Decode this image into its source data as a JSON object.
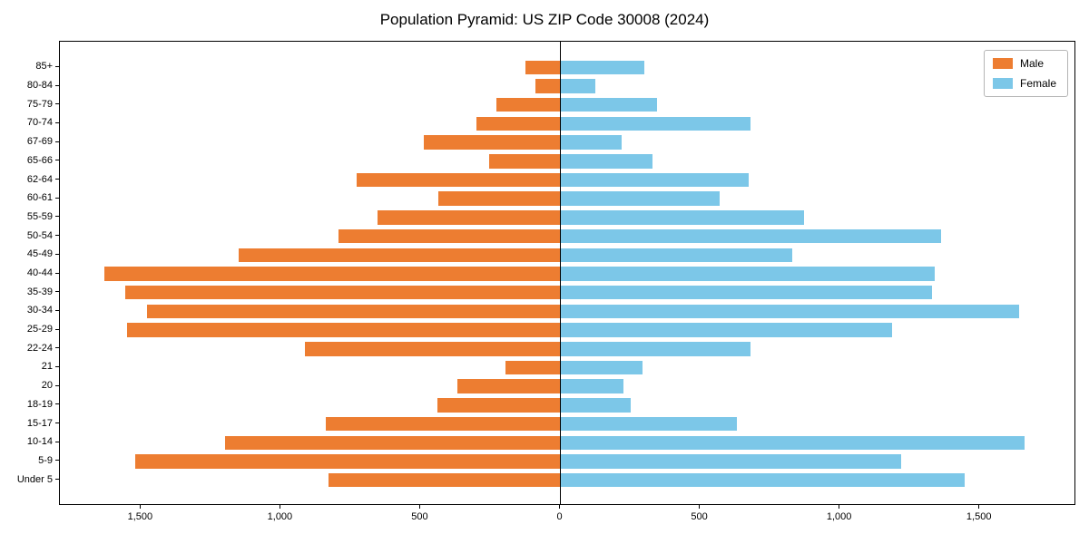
{
  "chart_data": {
    "type": "bar",
    "variant": "population-pyramid",
    "title": "Population Pyramid: US ZIP Code 30008 (2024)",
    "xlabel": "",
    "ylabel": "",
    "grid": false,
    "legend_position": "upper-right",
    "xlim": [
      -1790,
      1845
    ],
    "categories_top_to_bottom": [
      "85+",
      "80-84",
      "75-79",
      "70-74",
      "67-69",
      "65-66",
      "62-64",
      "60-61",
      "55-59",
      "50-54",
      "45-49",
      "40-44",
      "35-39",
      "30-34",
      "25-29",
      "22-24",
      "21",
      "20",
      "18-19",
      "15-17",
      "10-14",
      "5-9",
      "Under 5"
    ],
    "series": [
      {
        "name": "Male",
        "side": "left",
        "color": "#ED7D31",
        "values": [
          125,
          90,
          230,
          300,
          490,
          255,
          730,
          435,
          655,
          795,
          1150,
          1630,
          1555,
          1480,
          1550,
          915,
          195,
          370,
          440,
          840,
          1200,
          1520,
          830
        ]
      },
      {
        "name": "Female",
        "side": "right",
        "color": "#7CC7E8",
        "values": [
          300,
          125,
          345,
          680,
          220,
          330,
          675,
          570,
          870,
          1360,
          830,
          1340,
          1330,
          1640,
          1185,
          680,
          295,
          225,
          250,
          630,
          1660,
          1220,
          1445
        ]
      }
    ],
    "xticks": [
      {
        "value": -1500,
        "label": "1,500"
      },
      {
        "value": -1000,
        "label": "1,000"
      },
      {
        "value": -500,
        "label": "500"
      },
      {
        "value": 0,
        "label": "0"
      },
      {
        "value": 500,
        "label": "500"
      },
      {
        "value": 1000,
        "label": "1,000"
      },
      {
        "value": 1500,
        "label": "1,500"
      }
    ]
  }
}
